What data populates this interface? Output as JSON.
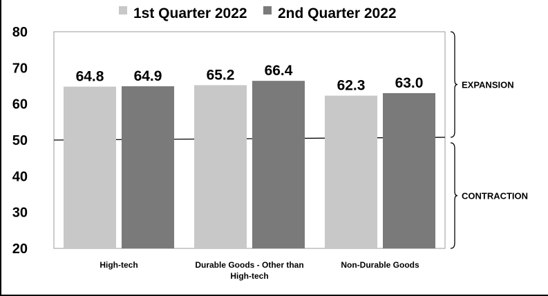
{
  "chart_data": {
    "type": "bar",
    "categories": [
      "High-tech",
      "Durable Goods - Other than High-tech",
      "Non-Durable Goods"
    ],
    "category_lines": [
      [
        "High-tech"
      ],
      [
        "Durable Goods - Other than",
        "High-tech"
      ],
      [
        "Non-Durable Goods"
      ]
    ],
    "series": [
      {
        "name": "1st Quarter 2022",
        "values": [
          64.8,
          65.2,
          62.3
        ],
        "color": "#c8c8c8"
      },
      {
        "name": "2nd Quarter 2022",
        "values": [
          64.9,
          66.4,
          63.0
        ],
        "color": "#7a7a7a"
      }
    ],
    "data_labels": [
      [
        "64.8",
        "65.2",
        "62.3"
      ],
      [
        "64.9",
        "66.4",
        "63.0"
      ]
    ],
    "ylim": [
      20,
      80
    ],
    "yticks": [
      20,
      30,
      40,
      50,
      60,
      70,
      80
    ],
    "reference_line": 50,
    "zones": [
      {
        "label": "EXPANSION",
        "from": 50,
        "to": 80
      },
      {
        "label": "CONTRACTION",
        "from": 20,
        "to": 50
      }
    ],
    "legend_position": "top",
    "grid": false
  }
}
